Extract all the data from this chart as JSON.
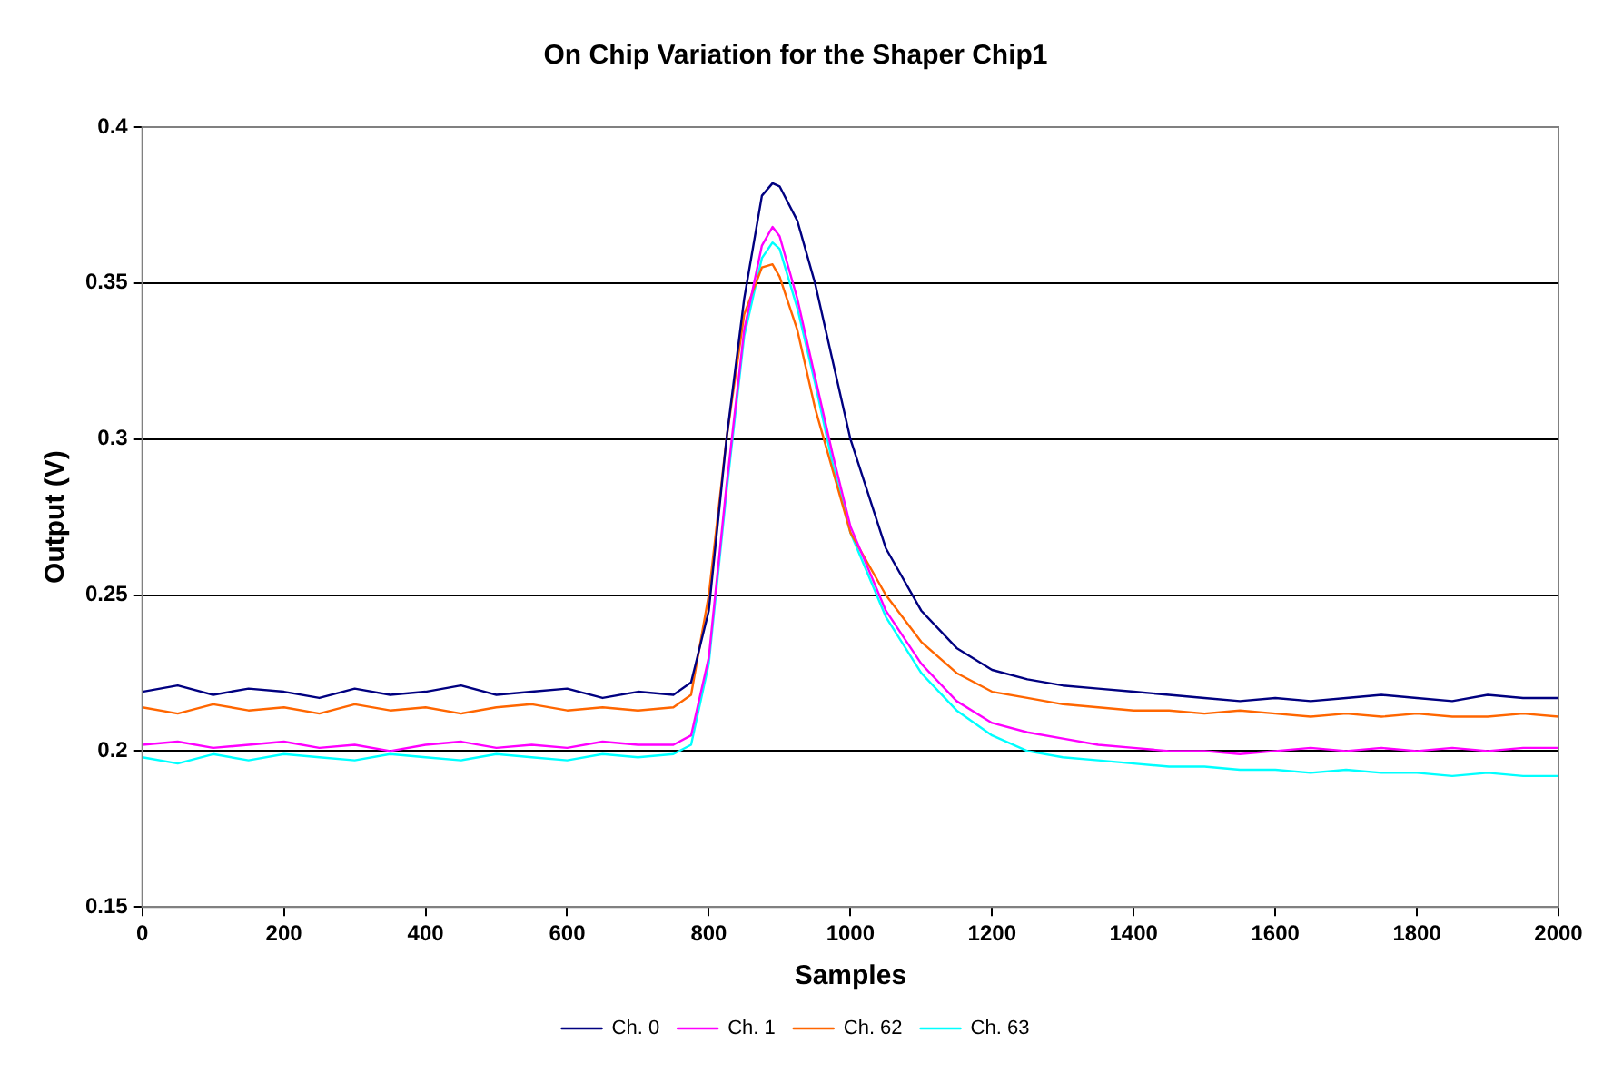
{
  "chart_data": {
    "type": "line",
    "title": "On Chip Variation for the Shaper Chip1",
    "xlabel": "Samples",
    "ylabel": "Output (V)",
    "x": [
      0,
      50,
      100,
      150,
      200,
      250,
      300,
      350,
      400,
      450,
      500,
      550,
      600,
      650,
      700,
      750,
      775,
      800,
      825,
      850,
      875,
      890,
      900,
      925,
      950,
      975,
      1000,
      1050,
      1100,
      1150,
      1200,
      1250,
      1300,
      1350,
      1400,
      1450,
      1500,
      1550,
      1600,
      1650,
      1700,
      1750,
      1800,
      1850,
      1900,
      1950,
      2000
    ],
    "series": [
      {
        "name": "Ch. 0",
        "color": "#000080",
        "values": [
          0.219,
          0.221,
          0.218,
          0.22,
          0.219,
          0.217,
          0.22,
          0.218,
          0.219,
          0.221,
          0.218,
          0.219,
          0.22,
          0.217,
          0.219,
          0.218,
          0.222,
          0.245,
          0.3,
          0.345,
          0.378,
          0.382,
          0.381,
          0.37,
          0.35,
          0.325,
          0.3,
          0.265,
          0.245,
          0.233,
          0.226,
          0.223,
          0.221,
          0.22,
          0.219,
          0.218,
          0.217,
          0.216,
          0.217,
          0.216,
          0.217,
          0.218,
          0.217,
          0.216,
          0.218,
          0.217,
          0.217
        ]
      },
      {
        "name": "Ch. 1",
        "color": "#ff00ff",
        "values": [
          0.202,
          0.203,
          0.201,
          0.202,
          0.203,
          0.201,
          0.202,
          0.2,
          0.202,
          0.203,
          0.201,
          0.202,
          0.201,
          0.203,
          0.202,
          0.202,
          0.205,
          0.23,
          0.285,
          0.335,
          0.362,
          0.368,
          0.365,
          0.345,
          0.32,
          0.295,
          0.272,
          0.245,
          0.228,
          0.216,
          0.209,
          0.206,
          0.204,
          0.202,
          0.201,
          0.2,
          0.2,
          0.199,
          0.2,
          0.201,
          0.2,
          0.201,
          0.2,
          0.201,
          0.2,
          0.201,
          0.201
        ]
      },
      {
        "name": "Ch. 62",
        "color": "#ff6600",
        "values": [
          0.214,
          0.212,
          0.215,
          0.213,
          0.214,
          0.212,
          0.215,
          0.213,
          0.214,
          0.212,
          0.214,
          0.215,
          0.213,
          0.214,
          0.213,
          0.214,
          0.218,
          0.25,
          0.3,
          0.34,
          0.355,
          0.356,
          0.352,
          0.335,
          0.31,
          0.29,
          0.27,
          0.25,
          0.235,
          0.225,
          0.219,
          0.217,
          0.215,
          0.214,
          0.213,
          0.213,
          0.212,
          0.213,
          0.212,
          0.211,
          0.212,
          0.211,
          0.212,
          0.211,
          0.211,
          0.212,
          0.211
        ]
      },
      {
        "name": "Ch. 63",
        "color": "#00ffff",
        "values": [
          0.198,
          0.196,
          0.199,
          0.197,
          0.199,
          0.198,
          0.197,
          0.199,
          0.198,
          0.197,
          0.199,
          0.198,
          0.197,
          0.199,
          0.198,
          0.199,
          0.202,
          0.228,
          0.283,
          0.333,
          0.358,
          0.363,
          0.361,
          0.342,
          0.318,
          0.292,
          0.27,
          0.243,
          0.225,
          0.213,
          0.205,
          0.2,
          0.198,
          0.197,
          0.196,
          0.195,
          0.195,
          0.194,
          0.194,
          0.193,
          0.194,
          0.193,
          0.193,
          0.192,
          0.193,
          0.192,
          0.192
        ]
      }
    ],
    "xlim": [
      0,
      2000
    ],
    "xticks": [
      0,
      200,
      400,
      600,
      800,
      1000,
      1200,
      1400,
      1600,
      1800,
      2000
    ],
    "ylim": [
      0.15,
      0.4
    ],
    "yticks": [
      0.15,
      0.2,
      0.25,
      0.3,
      0.35,
      0.4
    ],
    "grid": "y",
    "legend": "bottom",
    "marker": "none",
    "line_style": "solid"
  }
}
